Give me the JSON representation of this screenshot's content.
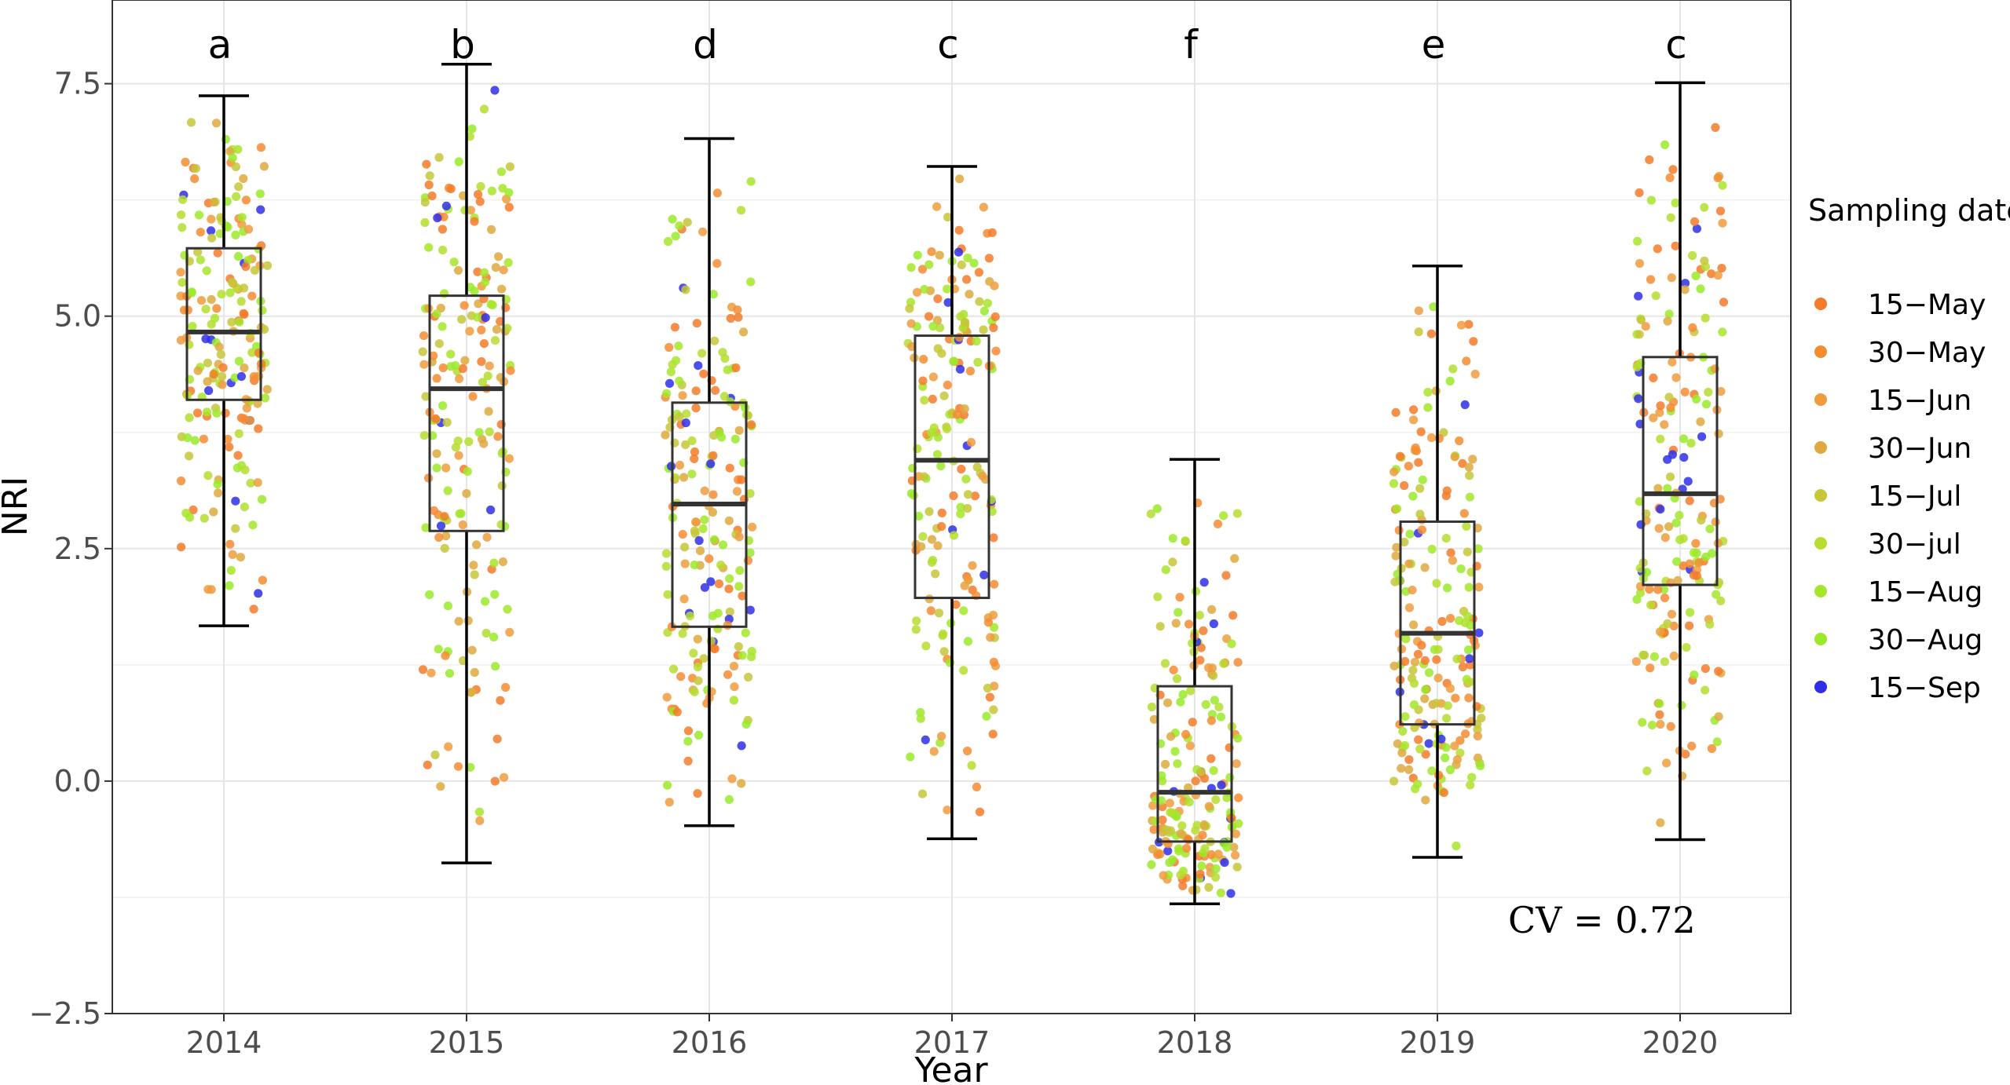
{
  "chart_data": {
    "type": "boxplot-jitter",
    "xlabel": "Year",
    "ylabel": "NRI",
    "ylim": [
      -2.5,
      8.4
    ],
    "yticks": [
      -2.5,
      0.0,
      2.5,
      5.0,
      7.5
    ],
    "ytick_labels": [
      "−2.5",
      "0.0",
      "2.5",
      "5.0",
      "7.5"
    ],
    "categories": [
      "2014",
      "2015",
      "2016",
      "2017",
      "2018",
      "2019",
      "2020"
    ],
    "significance_letters": [
      "a",
      "b",
      "d",
      "c",
      "f",
      "e",
      "c"
    ],
    "boxes": [
      {
        "year": "2014",
        "min": 1.67,
        "q1": 4.1,
        "median": 4.83,
        "q3": 5.73,
        "max": 7.37
      },
      {
        "year": "2015",
        "min": -0.88,
        "q1": 2.69,
        "median": 4.22,
        "q3": 5.22,
        "max": 7.71
      },
      {
        "year": "2016",
        "min": -0.48,
        "q1": 1.66,
        "median": 2.98,
        "q3": 4.07,
        "max": 6.91
      },
      {
        "year": "2017",
        "min": -0.62,
        "q1": 1.97,
        "median": 3.45,
        "q3": 4.79,
        "max": 6.61
      },
      {
        "year": "2018",
        "min": -1.32,
        "q1": -0.65,
        "median": -0.12,
        "q3": 1.02,
        "max": 3.46
      },
      {
        "year": "2019",
        "min": -0.82,
        "q1": 0.61,
        "median": 1.59,
        "q3": 2.79,
        "max": 5.54
      },
      {
        "year": "2020",
        "min": -0.63,
        "q1": 2.11,
        "median": 3.09,
        "q3": 4.56,
        "max": 7.51
      }
    ],
    "points_per_year": 200,
    "annotation": "CV = 0.72",
    "legend": {
      "title": "Sampling date",
      "position": "right",
      "entries": [
        {
          "label": "15−May",
          "color": "#F47B2A",
          "weight": 0.13
        },
        {
          "label": "30−May",
          "color": "#F48C32",
          "weight": 0.12
        },
        {
          "label": "15−Jun",
          "color": "#EE9C3E",
          "weight": 0.11
        },
        {
          "label": "30−Jun",
          "color": "#DFA940",
          "weight": 0.11
        },
        {
          "label": "15−Jul",
          "color": "#C5C738",
          "weight": 0.1
        },
        {
          "label": "30−jul",
          "color": "#B6DD30",
          "weight": 0.12
        },
        {
          "label": "15−Aug",
          "color": "#A6E62A",
          "weight": 0.14
        },
        {
          "label": "30−Aug",
          "color": "#9AEA2A",
          "weight": 0.12
        },
        {
          "label": "15−Sep",
          "color": "#2F2FE8",
          "weight": 0.05
        }
      ]
    },
    "grid": true
  }
}
